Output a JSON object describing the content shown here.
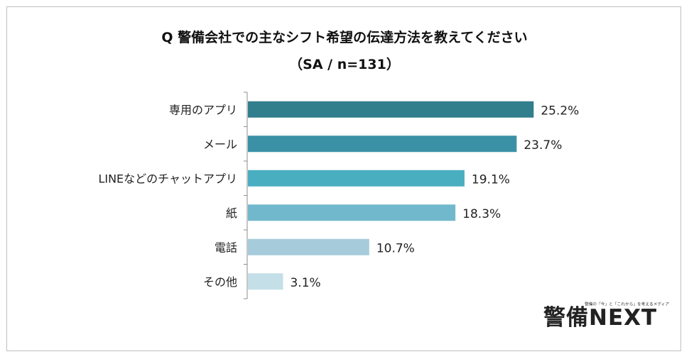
{
  "header": {
    "title_line1": "Q 警備会社での主なシフト希望の伝達方法を教えてください",
    "title_line2": "（SA / n=131）"
  },
  "chart_data": {
    "type": "bar",
    "orientation": "horizontal",
    "categories": [
      "専用のアプリ",
      "メール",
      "LINEなどのチャットアプリ",
      "紙",
      "電話",
      "その他"
    ],
    "values": [
      25.2,
      23.7,
      19.1,
      18.3,
      10.7,
      3.1
    ],
    "value_labels": [
      "25.2%",
      "23.7%",
      "19.1%",
      "18.3%",
      "10.7%",
      "3.1%"
    ],
    "bar_colors": [
      "#317e8c",
      "#3a91a6",
      "#4aaec1",
      "#72b8cd",
      "#a6ccdb",
      "#c4dfe8"
    ],
    "title": "Q 警備会社での主なシフト希望の伝達方法を教えてください",
    "subtitle": "（SA / n=131）",
    "xlim": [
      0,
      28.5
    ],
    "grid": false,
    "legend": "none"
  },
  "logo": {
    "text": "警備NEXT",
    "tagline": "警備の「今」と「これから」を考えるメディア"
  }
}
